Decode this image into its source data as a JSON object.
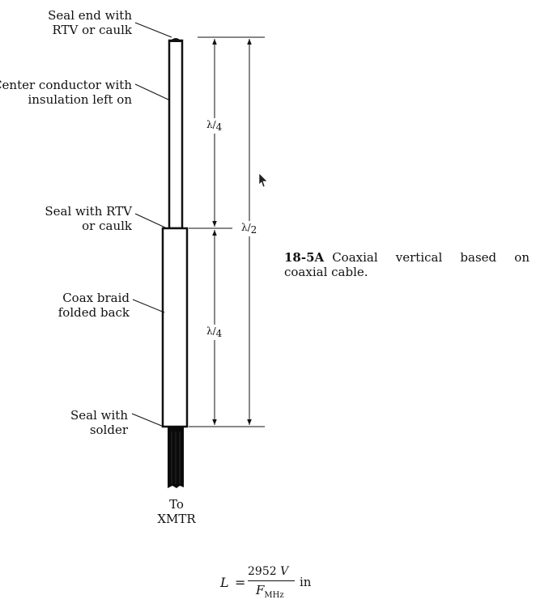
{
  "labels": {
    "seal_end": [
      "Seal end with",
      "RTV or caulk"
    ],
    "center_conductor": [
      "Center conductor with",
      "insulation left on"
    ],
    "seal_rtv": [
      "Seal with RTV",
      "or caulk"
    ],
    "coax_braid": [
      "Coax braid",
      "folded back"
    ],
    "seal_solder": [
      "Seal with",
      "solder"
    ],
    "to_xmtr": [
      "To",
      "XMTR"
    ]
  },
  "dimensions": {
    "upper_quarter": {
      "sym": "λ",
      "den": "4"
    },
    "lower_quarter": {
      "sym": "λ",
      "den": "4"
    },
    "half": {
      "sym": "λ",
      "den": "2"
    }
  },
  "caption": {
    "id": "18-5A",
    "text": "Coaxial vertical based on coaxial cable."
  },
  "formula": {
    "lhs": "L",
    "eq": "=",
    "num_value": "2952",
    "num_var": "V",
    "den_var": "F",
    "den_sub": "MHz",
    "unit": "in"
  },
  "colors": {
    "ink": "#111111",
    "cable": "#0a0a0a",
    "background": "#ffffff"
  }
}
